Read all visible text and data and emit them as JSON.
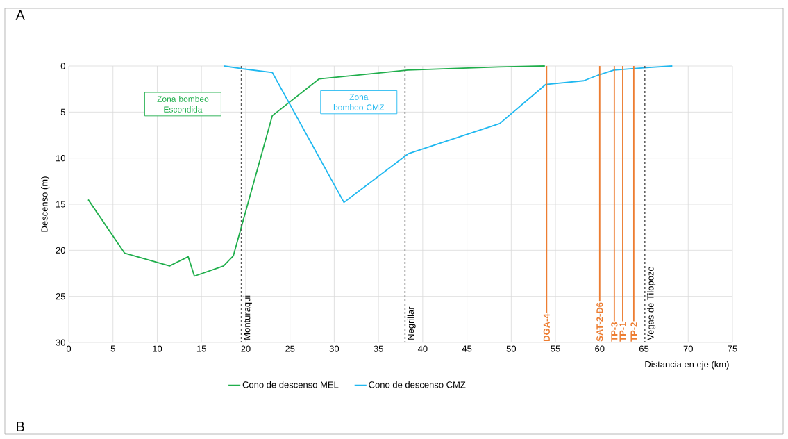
{
  "chart_data": {
    "type": "line",
    "xlabel": "Distancia en eje (km)",
    "ylabel": "Descenso (m)",
    "annotations": [
      "A",
      "B",
      "Zona bombeo Escondida",
      "Zona bombeo CMZ"
    ],
    "series": [
      {
        "name": "Cono de descenso MEL",
        "color": "#1fae4b",
        "x": [
          2.2,
          6.3,
          11.4,
          13.5,
          14.2,
          17.5,
          18.6,
          23.0,
          28.3,
          38.3,
          48.6,
          53.8
        ],
        "values": [
          14.5,
          20.3,
          21.7,
          20.7,
          22.8,
          21.7,
          20.6,
          5.4,
          1.4,
          0.45,
          0.1,
          0
        ]
      },
      {
        "name": "Cono de descenso CMZ",
        "color": "#1fb8f0",
        "x": [
          17.5,
          19.6,
          23.0,
          31.1,
          38.4,
          48.7,
          53.9,
          58.2,
          59.8,
          61.6,
          65.0,
          68.2
        ],
        "values": [
          0,
          0.3,
          0.7,
          14.8,
          9.5,
          6.25,
          2.0,
          1.6,
          1.0,
          0.45,
          0.2,
          0
        ]
      }
    ],
    "ref_lines": [
      {
        "axis": "x",
        "value": 19.5,
        "label": "Monturaqui",
        "color": "#595959",
        "line_style": "dashed"
      },
      {
        "axis": "x",
        "value": 38.0,
        "label": "Negrillar",
        "color": "#595959",
        "line_style": "dashed"
      },
      {
        "axis": "x",
        "value": 65.1,
        "label": "Vegas de Tilopozo",
        "color": "#595959",
        "line_style": "dashed"
      },
      {
        "axis": "x",
        "value": 54.0,
        "label": "DGA-4",
        "color": "#ed7d31",
        "line_style": "solid"
      },
      {
        "axis": "x",
        "value": 60.0,
        "label": "SAT-2-D6",
        "color": "#ed7d31",
        "line_style": "solid"
      },
      {
        "axis": "x",
        "value": 61.65,
        "label": "TP-3",
        "color": "#ed7d31",
        "line_style": "solid"
      },
      {
        "axis": "x",
        "value": 62.6,
        "label": "TP-1",
        "color": "#ed7d31",
        "line_style": "solid"
      },
      {
        "axis": "x",
        "value": 63.85,
        "label": "TP-2",
        "color": "#ed7d31",
        "line_style": "solid"
      }
    ],
    "xlim": [
      0,
      75
    ],
    "ylim": [
      30,
      0
    ],
    "xticks": [
      0,
      5,
      10,
      15,
      20,
      25,
      30,
      35,
      40,
      45,
      50,
      55,
      60,
      65,
      70,
      75
    ],
    "yticks": [
      0,
      5,
      10,
      15,
      20,
      25,
      30
    ],
    "grid": true,
    "legend": "bottom",
    "marker": "none",
    "line_style": "solid"
  }
}
